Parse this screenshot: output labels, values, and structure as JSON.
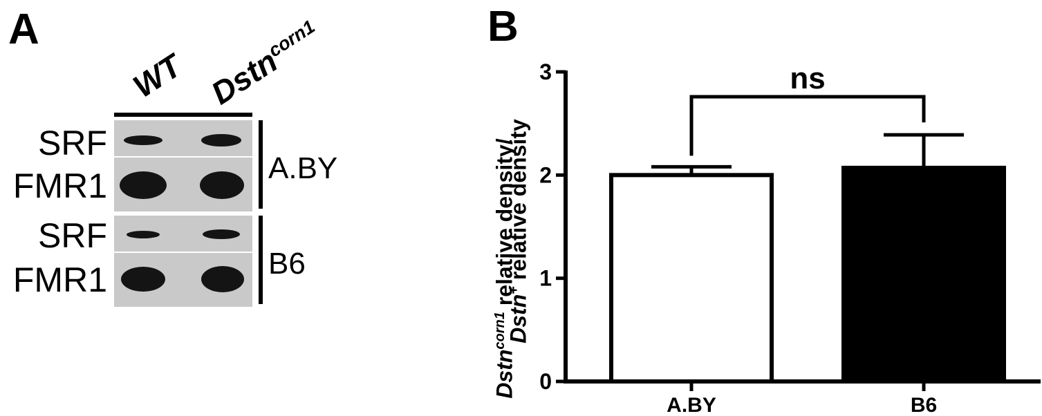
{
  "panelA": {
    "letter": "A",
    "lanes": {
      "wt": "WT",
      "mutant_base": "Dstn",
      "mutant_sup": "corn1"
    },
    "rows": [
      "SRF",
      "FMR1",
      "SRF",
      "FMR1"
    ],
    "strains": [
      "A.BY",
      "B6"
    ]
  },
  "panelB": {
    "letter": "B"
  },
  "chart_data": {
    "type": "bar",
    "categories": [
      "A.BY",
      "B6"
    ],
    "values": [
      2.0,
      2.07
    ],
    "errors": [
      0.08,
      0.32
    ],
    "bar_colors": [
      "#ffffff",
      "#000000"
    ],
    "ylim": [
      0,
      3
    ],
    "yticks": [
      "0",
      "1",
      "2",
      "3"
    ],
    "ylabel_line1": {
      "base": "Dstn",
      "sup": "corn1",
      "rest": " relative density/"
    },
    "ylabel_line2": {
      "base": "Dstn",
      "sup": "+",
      "rest": " relative density"
    },
    "annotation": "ns",
    "grid": false
  }
}
